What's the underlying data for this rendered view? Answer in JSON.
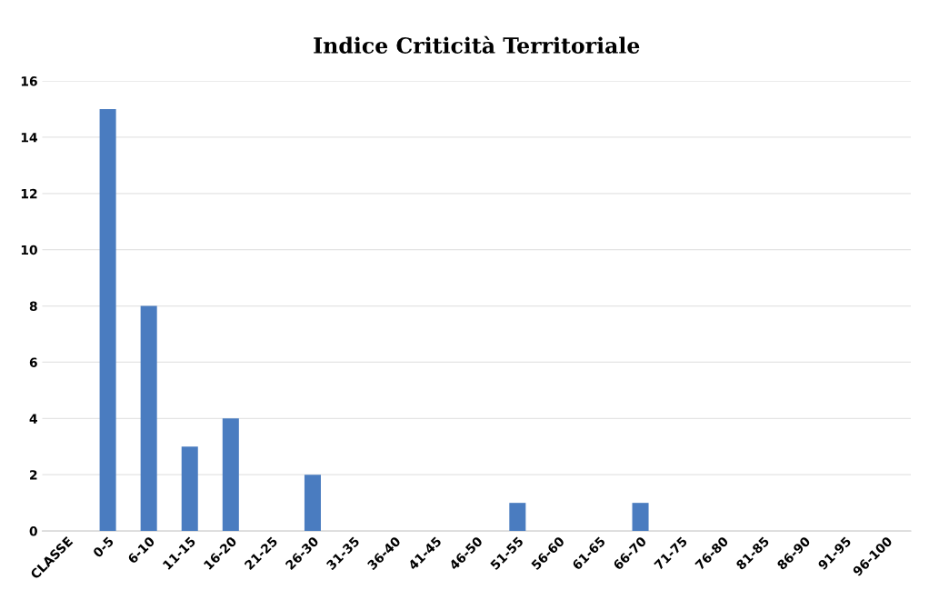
{
  "chart_data": {
    "type": "bar",
    "title": "Indice Criticità Territoriale",
    "categories": [
      "CLASSE",
      "0-5",
      "6-10",
      "11-15",
      "16-20",
      "21-25",
      "26-30",
      "31-35",
      "36-40",
      "41-45",
      "46-50",
      "51-55",
      "56-60",
      "61-65",
      "66-70",
      "71-75",
      "76-80",
      "81-85",
      "86-90",
      "91-95",
      "96-100"
    ],
    "values": [
      0,
      15,
      8,
      3,
      4,
      0,
      2,
      0,
      0,
      0,
      0,
      1,
      0,
      0,
      1,
      0,
      0,
      0,
      0,
      0,
      0
    ],
    "color": "#4a7cc0",
    "ylim": [
      0,
      16
    ],
    "yticks": [
      0,
      2,
      4,
      6,
      8,
      10,
      12,
      14,
      16
    ],
    "grid": "y",
    "legend": false
  }
}
